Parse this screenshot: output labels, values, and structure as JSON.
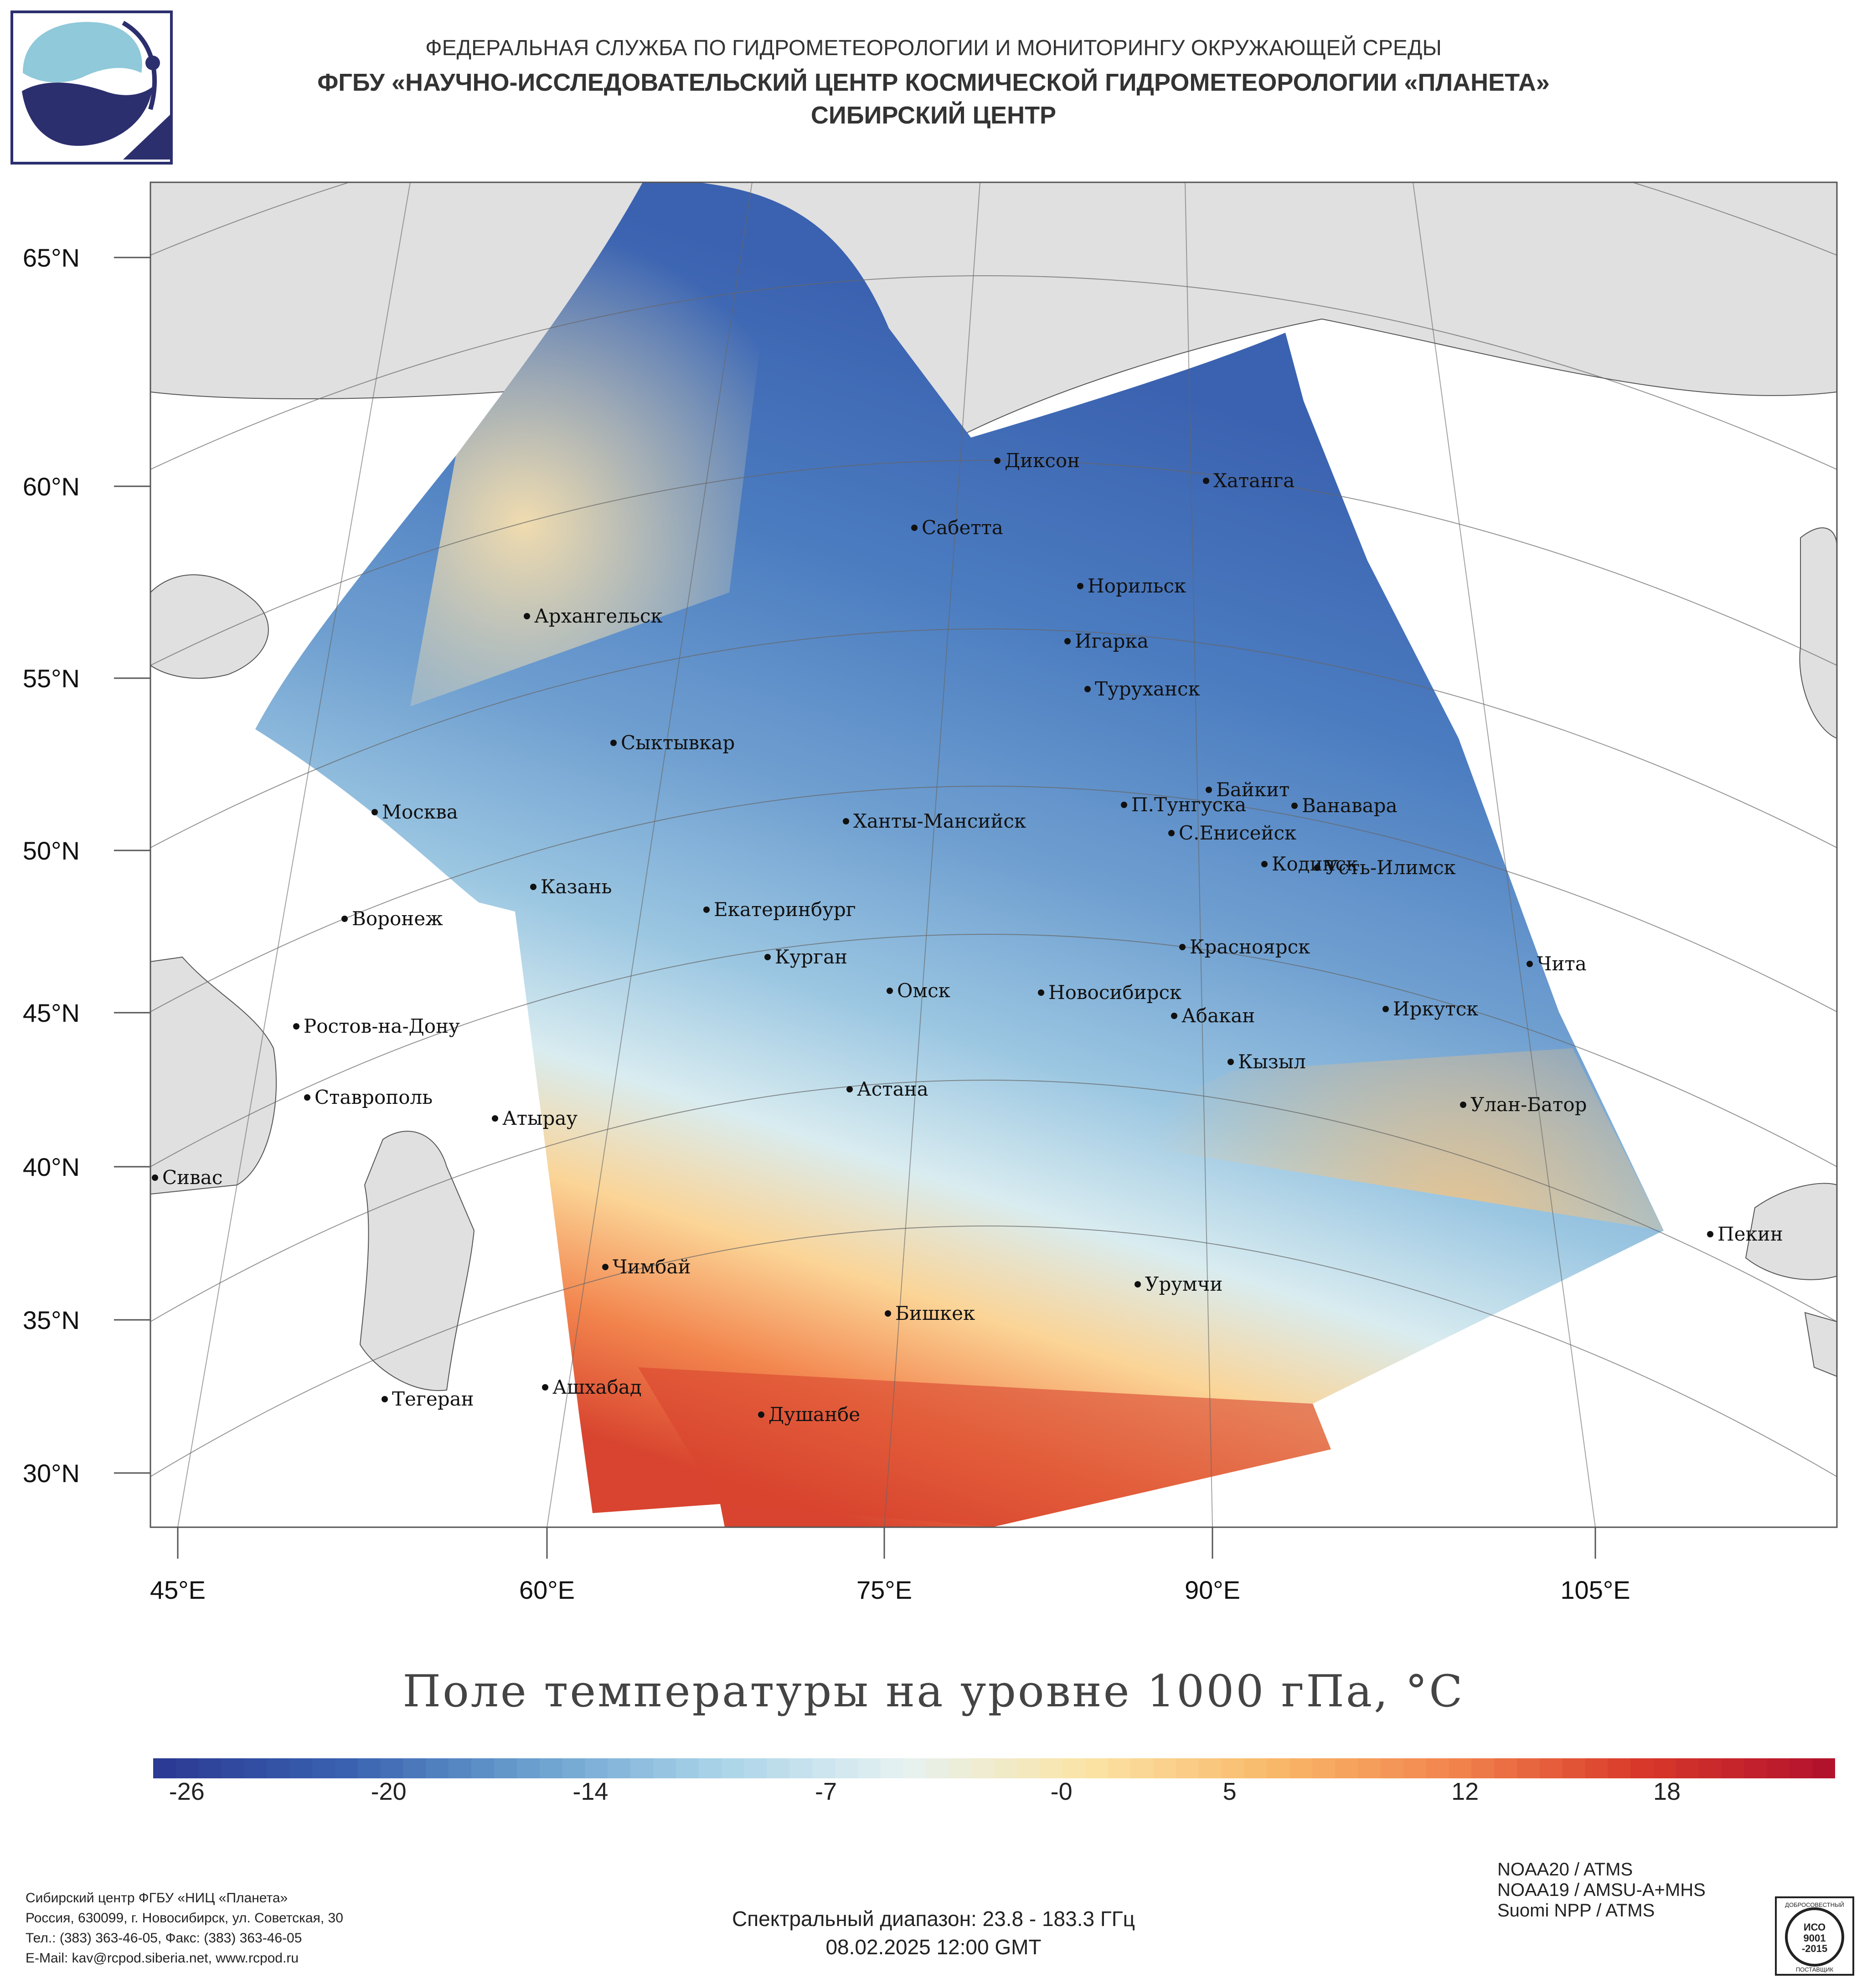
{
  "header": {
    "line1": "ФЕДЕРАЛЬНАЯ СЛУЖБА ПО ГИДРОМЕТЕОРОЛОГИИ И МОНИТОРИНГУ ОКРУЖАЮЩЕЙ СРЕДЫ",
    "line2": "ФГБУ «НАУЧНО-ИССЛЕДОВАТЕЛЬСКИЙ ЦЕНТР КОСМИЧЕСКОЙ ГИДРОМЕТЕОРОЛОГИИ «ПЛАНЕТА»",
    "line3": "СИБИРСКИЙ ЦЕНТР"
  },
  "map": {
    "title": "Поле температуры на уровне 1000 гПа, °C",
    "lat_labels": [
      "65°N",
      "60°N",
      "55°N",
      "50°N",
      "45°N",
      "40°N",
      "35°N",
      "30°N"
    ],
    "lon_labels": [
      "45°E",
      "60°E",
      "75°E",
      "90°E",
      "105°E"
    ],
    "cities": [
      {
        "name": "Диксон"
      },
      {
        "name": "Хатанга"
      },
      {
        "name": "Сабетта"
      },
      {
        "name": "Норильск"
      },
      {
        "name": "Архангельск"
      },
      {
        "name": "Игарка"
      },
      {
        "name": "Туруханск"
      },
      {
        "name": "Сыктывкар"
      },
      {
        "name": "Байкит"
      },
      {
        "name": "П.Тунгуска"
      },
      {
        "name": "Ванавара"
      },
      {
        "name": "Москва"
      },
      {
        "name": "Ханты-Мансийск"
      },
      {
        "name": "С.Енисейск"
      },
      {
        "name": "Кодинск"
      },
      {
        "name": "Усть-Илимск"
      },
      {
        "name": "Казань"
      },
      {
        "name": "Екатеринбург"
      },
      {
        "name": "Воронеж"
      },
      {
        "name": "Красноярск"
      },
      {
        "name": "Курган"
      },
      {
        "name": "Чита"
      },
      {
        "name": "Омск"
      },
      {
        "name": "Новосибирск"
      },
      {
        "name": "Иркутск"
      },
      {
        "name": "Абакан"
      },
      {
        "name": "Ростов-на-Дону"
      },
      {
        "name": "Кызыл"
      },
      {
        "name": "Ставрополь"
      },
      {
        "name": "Астана"
      },
      {
        "name": "Улан-Батор"
      },
      {
        "name": "Атырау"
      },
      {
        "name": "Сивас"
      },
      {
        "name": "Пекин"
      },
      {
        "name": "Чимбай"
      },
      {
        "name": "Урумчи"
      },
      {
        "name": "Бишкек"
      },
      {
        "name": "Ашхабад"
      },
      {
        "name": "Тегеран"
      },
      {
        "name": "Душанбе"
      }
    ]
  },
  "colorbar": {
    "ticks": [
      "-26",
      "-20",
      "-14",
      "-7",
      "-0",
      "5",
      "12",
      "18"
    ],
    "min": -27,
    "max": 23,
    "colors": [
      "#2b3a94",
      "#3a62b0",
      "#6aa0cf",
      "#a9d3e8",
      "#e5f2f2",
      "#fbe4a6",
      "#f9b96a",
      "#f2844d",
      "#d9392a",
      "#b3122d"
    ]
  },
  "footer": {
    "org_lines": [
      "Сибирский центр ФГБУ «НИЦ «Планета»",
      "Россия, 630099, г. Новосибирск, ул. Советская, 30",
      "Тел.: (383) 363-46-05, Факс: (383) 363-46-05",
      "E-Mail: kav@rcpod.siberia.net, www.rcpod.ru"
    ],
    "spectral": "Спектральный диапазон: 23.8 - 183.3 ГГц",
    "datetime": "08.02.2025 12:00 GMT",
    "satellites": [
      "NOAA20 / ATMS",
      "NOAA19 / AMSU-A+MHS",
      "Suomi NPP / ATMS"
    ],
    "iso_lines": [
      "ДОБРОСОВЕСТНЫЙ",
      "ИСО",
      "9001",
      "-2015",
      "ПОСТАВЩИК"
    ]
  }
}
